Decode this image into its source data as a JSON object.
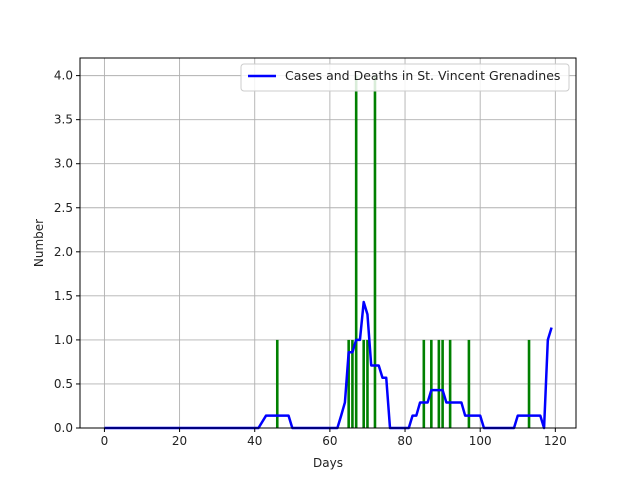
{
  "chart_data": {
    "type": "line",
    "title": "",
    "xlabel": "Days",
    "ylabel": "Number",
    "xlim": [
      -6.5,
      125.5
    ],
    "ylim": [
      0,
      4.2
    ],
    "xticks": [
      0,
      20,
      40,
      60,
      80,
      100,
      120
    ],
    "yticks": [
      0.0,
      0.5,
      1.0,
      1.5,
      2.0,
      2.5,
      3.0,
      3.5,
      4.0
    ],
    "grid": true,
    "legend": "top-right",
    "colors": {
      "line": "#0000ff",
      "bars": "#008000",
      "grid": "#b0b0b0"
    },
    "bars": {
      "x": [
        46,
        65,
        66,
        67,
        69,
        70,
        72,
        85,
        87,
        89,
        90,
        92,
        97,
        113
      ],
      "values": [
        1,
        1,
        1,
        4,
        1,
        1,
        4,
        1,
        1,
        1,
        1,
        1,
        1,
        1
      ]
    },
    "series": [
      {
        "name": "Cases and Deaths in St. Vincent Grenadines",
        "x": [
          0,
          41,
          43,
          44,
          46,
          49,
          50,
          62,
          63,
          64,
          65,
          66,
          67,
          68,
          69,
          70,
          71,
          72,
          73,
          74,
          75,
          76,
          81,
          82,
          83,
          84,
          85,
          86,
          87,
          88,
          89,
          90,
          91,
          92,
          93,
          94,
          95,
          96,
          97,
          98,
          99,
          100,
          101,
          109,
          110,
          111,
          112,
          113,
          114,
          115,
          116,
          117,
          118,
          119
        ],
        "values": [
          0,
          0,
          0.14,
          0.14,
          0.14,
          0.14,
          0,
          0,
          0.14,
          0.29,
          0.86,
          0.86,
          1.0,
          1.0,
          1.43,
          1.29,
          0.71,
          0.71,
          0.71,
          0.57,
          0.57,
          0,
          0,
          0.14,
          0.14,
          0.29,
          0.29,
          0.29,
          0.43,
          0.43,
          0.43,
          0.43,
          0.29,
          0.29,
          0.29,
          0.29,
          0.29,
          0.14,
          0.14,
          0.14,
          0.14,
          0.14,
          0,
          0,
          0.14,
          0.14,
          0.14,
          0.14,
          0.14,
          0.14,
          0.14,
          0,
          1.0,
          1.14
        ]
      }
    ]
  }
}
